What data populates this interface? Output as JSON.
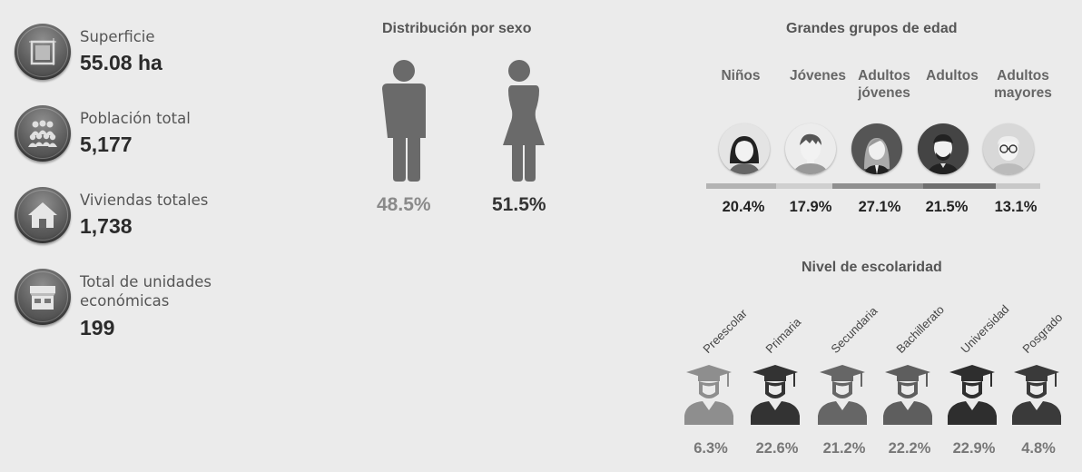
{
  "stats": [
    {
      "label": "Superficie",
      "value": "55.08 ha",
      "icon": "area-icon"
    },
    {
      "label": "Población total",
      "value": "5,177",
      "icon": "people-icon"
    },
    {
      "label": "Viviendas totales",
      "value": "1,738",
      "icon": "house-icon"
    },
    {
      "label": "Total de unidades económicas",
      "value": "199",
      "icon": "store-icon"
    }
  ],
  "sex": {
    "title": "Distribución por sexo",
    "male_pct": "48.5%",
    "female_pct": "51.5%"
  },
  "age": {
    "title": "Grandes grupos de edad",
    "groups": [
      {
        "label": "Niños",
        "pct": "20.4%"
      },
      {
        "label": "Jóvenes",
        "pct": "17.9%"
      },
      {
        "label": "Adultos jóvenes",
        "pct": "27.1%"
      },
      {
        "label": "Adultos",
        "pct": "21.5%"
      },
      {
        "label": "Adultos mayores",
        "pct": "13.1%"
      }
    ]
  },
  "education": {
    "title": "Nivel de escolaridad",
    "levels": [
      {
        "label": "Preescolar",
        "pct": "6.3%"
      },
      {
        "label": "Primaria",
        "pct": "22.6%"
      },
      {
        "label": "Secundaria",
        "pct": "21.2%"
      },
      {
        "label": "Bachillerato",
        "pct": "22.2%"
      },
      {
        "label": "Universidad",
        "pct": "22.9%"
      },
      {
        "label": "Posgrado",
        "pct": "4.8%"
      }
    ]
  },
  "colors": {
    "male": "#6a6a6a",
    "female": "#6a6a6a",
    "male_pct_text": "#8a8a8a",
    "female_pct_text": "#333333"
  }
}
